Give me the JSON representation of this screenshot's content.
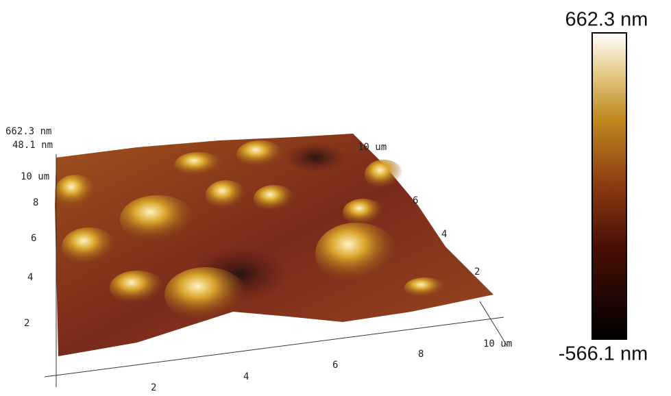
{
  "z_axis": {
    "labels": [
      "662.3 nm",
      "48.1 nm"
    ]
  },
  "left_axis": {
    "ticks": [
      "10 um",
      "8",
      "6",
      "4",
      "2"
    ]
  },
  "right_axis": {
    "ticks": [
      "10 um",
      "6",
      "4",
      "2"
    ]
  },
  "front_axis": {
    "ticks": [
      "2",
      "4",
      "6",
      "8",
      "10 um"
    ]
  },
  "colorbar": {
    "max_label": "662.3 nm",
    "min_label": "-566.1 nm"
  }
}
